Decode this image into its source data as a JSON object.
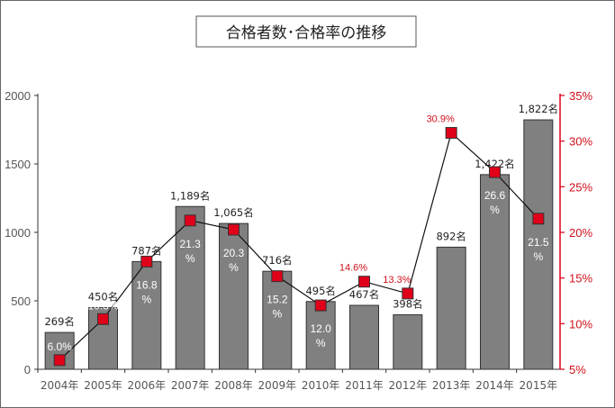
{
  "chart_data": {
    "type": "bar",
    "title": "合格者数･合格率の推移",
    "categories": [
      "2004年",
      "2005年",
      "2006年",
      "2007年",
      "2008年",
      "2009年",
      "2010年",
      "2011年",
      "2012年",
      "2013年",
      "2014年",
      "2015年"
    ],
    "series": [
      {
        "values": [
          269,
          450,
          787,
          1189,
          1065,
          716,
          495,
          467,
          398,
          892,
          1422,
          1822
        ],
        "labels": [
          "269名",
          "450名",
          "787名",
          "1,189名",
          "1,065名",
          "716名",
          "495名",
          "467名",
          "398名",
          "892名",
          "1,422名",
          "1,822名"
        ],
        "color": "#808080"
      },
      {
        "type": "line",
        "axis": "right",
        "values": [
          6.0,
          10.5,
          16.8,
          21.3,
          20.3,
          15.2,
          12.0,
          14.6,
          13.3,
          30.9,
          26.6,
          21.5
        ],
        "labels": [
          "6.0%",
          "10.5%",
          "16.8%",
          "21.3%",
          "20.3%",
          "15.2%",
          "12.0%",
          "14.6%",
          "13.3%",
          "30.9%",
          "26.6%",
          "21.5%"
        ],
        "color": "#e0001a"
      }
    ],
    "ylim": [
      0,
      2000
    ],
    "y2lim": [
      5,
      35
    ],
    "yticks": [
      "0",
      "500",
      "1000",
      "1500",
      "2000"
    ],
    "y2ticks": [
      "5%",
      "10%",
      "15%",
      "20%",
      "25%",
      "30%",
      "35%"
    ],
    "grid": false,
    "legend": "none"
  }
}
